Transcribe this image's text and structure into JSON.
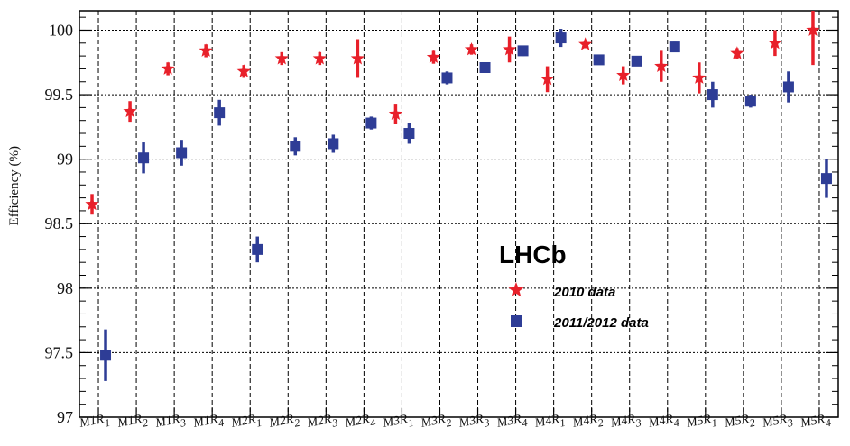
{
  "chart_data": {
    "type": "scatter",
    "ylabel": "Efficiency (%)",
    "ylim": [
      97,
      100.15
    ],
    "yticks": [
      97,
      97.5,
      98,
      98.5,
      99,
      99.5,
      100
    ],
    "ytick_labels": [
      "97",
      "97.5",
      "98",
      "98.5",
      "99",
      "99.5",
      "100"
    ],
    "grid": true,
    "legend_placement": "center-right",
    "categories": [
      "M1R1",
      "M1R2",
      "M1R3",
      "M1R4",
      "M2R1",
      "M2R2",
      "M2R3",
      "M2R4",
      "M3R1",
      "M3R2",
      "M3R3",
      "M3R4",
      "M4R1",
      "M4R2",
      "M4R3",
      "M4R4",
      "M5R1",
      "M5R2",
      "M5R3",
      "M5R4"
    ],
    "category_labels": [
      {
        "main": "M1R",
        "sub": "1"
      },
      {
        "main": "M1R",
        "sub": "2"
      },
      {
        "main": "M1R",
        "sub": "3"
      },
      {
        "main": "M1R",
        "sub": "4"
      },
      {
        "main": "M2R",
        "sub": "1"
      },
      {
        "main": "M2R",
        "sub": "2"
      },
      {
        "main": "M2R",
        "sub": "3"
      },
      {
        "main": "M2R",
        "sub": "4"
      },
      {
        "main": "M3R",
        "sub": "1"
      },
      {
        "main": "M3R",
        "sub": "2"
      },
      {
        "main": "M3R",
        "sub": "3"
      },
      {
        "main": "M3R",
        "sub": "4"
      },
      {
        "main": "M4R",
        "sub": "1"
      },
      {
        "main": "M4R",
        "sub": "2"
      },
      {
        "main": "M4R",
        "sub": "3"
      },
      {
        "main": "M4R",
        "sub": "4"
      },
      {
        "main": "M5R",
        "sub": "1"
      },
      {
        "main": "M5R",
        "sub": "2"
      },
      {
        "main": "M5R",
        "sub": "3"
      },
      {
        "main": "M5R",
        "sub": "4"
      }
    ],
    "series": [
      {
        "name": "2010 data",
        "marker": "star",
        "color": "#e8202a",
        "values": [
          98.65,
          99.37,
          99.7,
          99.84,
          99.68,
          99.78,
          99.78,
          99.78,
          99.35,
          99.79,
          99.85,
          99.85,
          99.62,
          99.89,
          99.65,
          99.72,
          99.63,
          99.82,
          99.9,
          100.0
        ],
        "errors": [
          0.08,
          0.08,
          0.05,
          0.05,
          0.05,
          0.05,
          0.05,
          0.15,
          0.08,
          0.05,
          0.04,
          0.1,
          0.1,
          0.03,
          0.07,
          0.12,
          0.12,
          0.04,
          0.1,
          0.27
        ]
      },
      {
        "name": "2011/2012 data",
        "marker": "square",
        "color": "#2e3d96",
        "values": [
          97.48,
          99.01,
          99.05,
          99.36,
          98.3,
          99.1,
          99.12,
          99.28,
          99.2,
          99.63,
          99.71,
          99.84,
          99.94,
          99.77,
          99.76,
          99.87,
          99.5,
          99.45,
          99.56,
          98.85
        ],
        "errors": [
          0.2,
          0.12,
          0.1,
          0.1,
          0.1,
          0.07,
          0.07,
          0.05,
          0.08,
          0.05,
          0.03,
          0.04,
          0.07,
          0.03,
          0.03,
          0.04,
          0.1,
          0.05,
          0.12,
          0.15
        ]
      }
    ],
    "annotation": "LHCb"
  }
}
